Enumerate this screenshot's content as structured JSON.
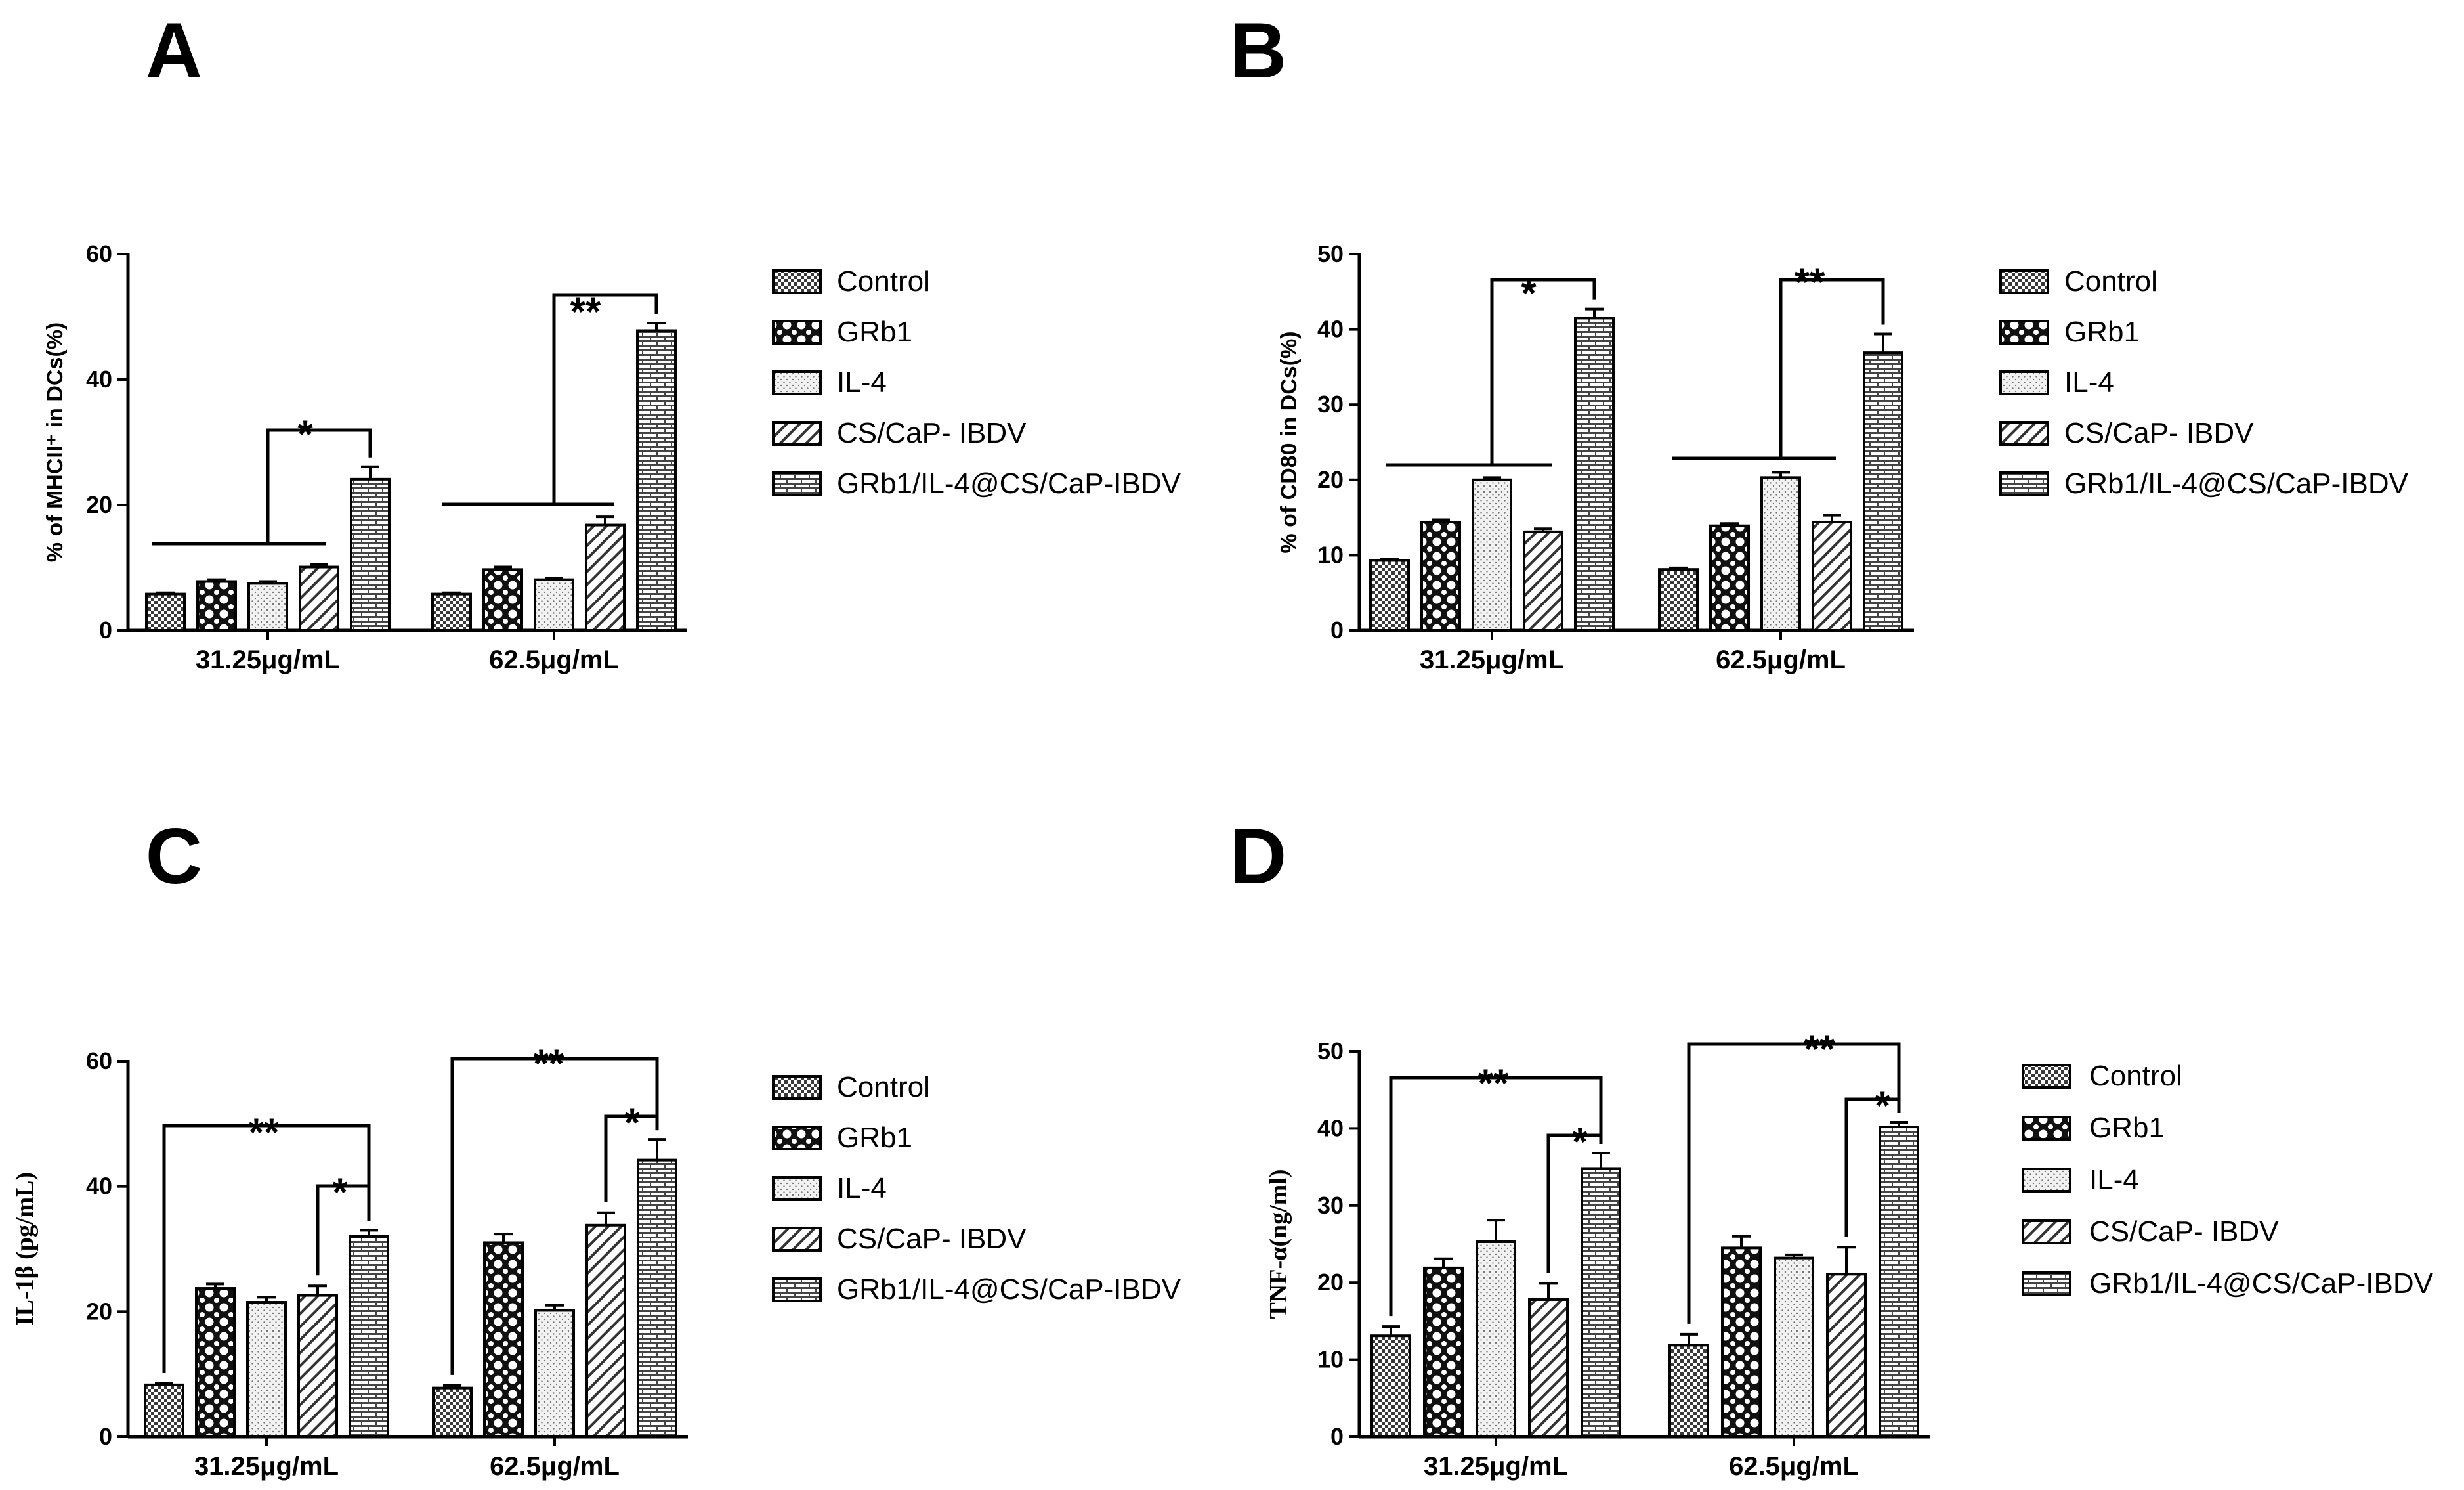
{
  "legend_labels": [
    "Control",
    "GRb1",
    "IL-4",
    "CS/CaP- IBDV",
    "GRb1/IL-4@CS/CaP-IBDV"
  ],
  "chart_data": [
    {
      "panel": "A",
      "type": "bar",
      "ylabel": "% of MHCII⁺ in DCs(%)",
      "ylim": [
        0,
        60
      ],
      "yticks": [
        "0",
        "20",
        "40",
        "60"
      ],
      "categories": [
        "31.25μg/mL",
        "62.5μg/mL"
      ],
      "series": [
        {
          "name": "Control",
          "values": [
            5.8,
            5.8
          ],
          "errors": [
            0.2,
            0.2
          ]
        },
        {
          "name": "GRb1",
          "values": [
            7.8,
            9.7
          ],
          "errors": [
            0.3,
            0.4
          ]
        },
        {
          "name": "IL-4",
          "values": [
            7.5,
            8.1
          ],
          "errors": [
            0.3,
            0.2
          ]
        },
        {
          "name": "CS/CaP- IBDV",
          "values": [
            10.1,
            16.8
          ],
          "errors": [
            0.4,
            1.3
          ]
        },
        {
          "name": "GRb1/IL-4@CS/CaP-IBDV",
          "values": [
            24.1,
            47.8
          ],
          "errors": [
            2.0,
            1.2
          ]
        }
      ],
      "significance": [
        {
          "category": 0,
          "label": "*"
        },
        {
          "category": 1,
          "label": "**"
        }
      ]
    },
    {
      "panel": "B",
      "type": "bar",
      "ylabel": "% of CD80 in DCs(%)",
      "ylim": [
        0,
        50
      ],
      "yticks": [
        "0",
        "10",
        "20",
        "30",
        "40",
        "50"
      ],
      "categories": [
        "31.25μg/mL",
        "62.5μg/mL"
      ],
      "series": [
        {
          "name": "Control",
          "values": [
            9.3,
            8.1
          ],
          "errors": [
            0.2,
            0.2
          ]
        },
        {
          "name": "GRb1",
          "values": [
            14.4,
            13.9
          ],
          "errors": [
            0.3,
            0.3
          ]
        },
        {
          "name": "IL-4",
          "values": [
            20.0,
            20.3
          ],
          "errors": [
            0.3,
            0.7
          ]
        },
        {
          "name": "CS/CaP- IBDV",
          "values": [
            13.1,
            14.4
          ],
          "errors": [
            0.4,
            0.9
          ]
        },
        {
          "name": "GRb1/IL-4@CS/CaP-IBDV",
          "values": [
            41.5,
            36.9
          ],
          "errors": [
            1.2,
            2.5
          ]
        }
      ],
      "significance": [
        {
          "category": 0,
          "label": "*"
        },
        {
          "category": 1,
          "label": "**"
        }
      ]
    },
    {
      "panel": "C",
      "type": "bar",
      "ylabel": "IL-1β (pg/mL)",
      "ylim": [
        0,
        60
      ],
      "yticks": [
        "0",
        "20",
        "40",
        "60"
      ],
      "categories": [
        "31.25μg/mL",
        "62.5μg/mL"
      ],
      "series": [
        {
          "name": "Control",
          "values": [
            8.3,
            7.8
          ],
          "errors": [
            0.2,
            0.4
          ]
        },
        {
          "name": "GRb1",
          "values": [
            23.7,
            31.0
          ],
          "errors": [
            0.7,
            1.4
          ]
        },
        {
          "name": "IL-4",
          "values": [
            21.5,
            20.2
          ],
          "errors": [
            0.8,
            0.8
          ]
        },
        {
          "name": "CS/CaP- IBDV",
          "values": [
            22.6,
            33.8
          ],
          "errors": [
            1.5,
            2.0
          ]
        },
        {
          "name": "GRb1/IL-4@CS/CaP-IBDV",
          "values": [
            32.0,
            44.2
          ],
          "errors": [
            1.0,
            3.3
          ]
        }
      ],
      "significance": [
        {
          "category": 0,
          "label": "**"
        },
        {
          "category": 0,
          "label": "*"
        },
        {
          "category": 1,
          "label": "**"
        },
        {
          "category": 1,
          "label": "*"
        }
      ]
    },
    {
      "panel": "D",
      "type": "bar",
      "ylabel": "TNF-α(ng/ml)",
      "ylim": [
        0,
        50
      ],
      "yticks": [
        "0",
        "10",
        "20",
        "30",
        "40",
        "50"
      ],
      "categories": [
        "31.25μg/mL",
        "62.5μg/mL"
      ],
      "series": [
        {
          "name": "Control",
          "values": [
            13.1,
            11.9
          ],
          "errors": [
            1.2,
            1.4
          ]
        },
        {
          "name": "GRb1",
          "values": [
            21.9,
            24.5
          ],
          "errors": [
            1.2,
            1.5
          ]
        },
        {
          "name": "IL-4",
          "values": [
            25.3,
            23.2
          ],
          "errors": [
            2.8,
            0.4
          ]
        },
        {
          "name": "CS/CaP- IBDV",
          "values": [
            17.8,
            21.1
          ],
          "errors": [
            2.1,
            3.5
          ]
        },
        {
          "name": "GRb1/IL-4@CS/CaP-IBDV",
          "values": [
            34.8,
            40.2
          ],
          "errors": [
            2.0,
            0.6
          ]
        }
      ],
      "significance": [
        {
          "category": 0,
          "label": "**"
        },
        {
          "category": 0,
          "label": "*"
        },
        {
          "category": 1,
          "label": "**"
        },
        {
          "category": 1,
          "label": "*"
        }
      ]
    }
  ]
}
